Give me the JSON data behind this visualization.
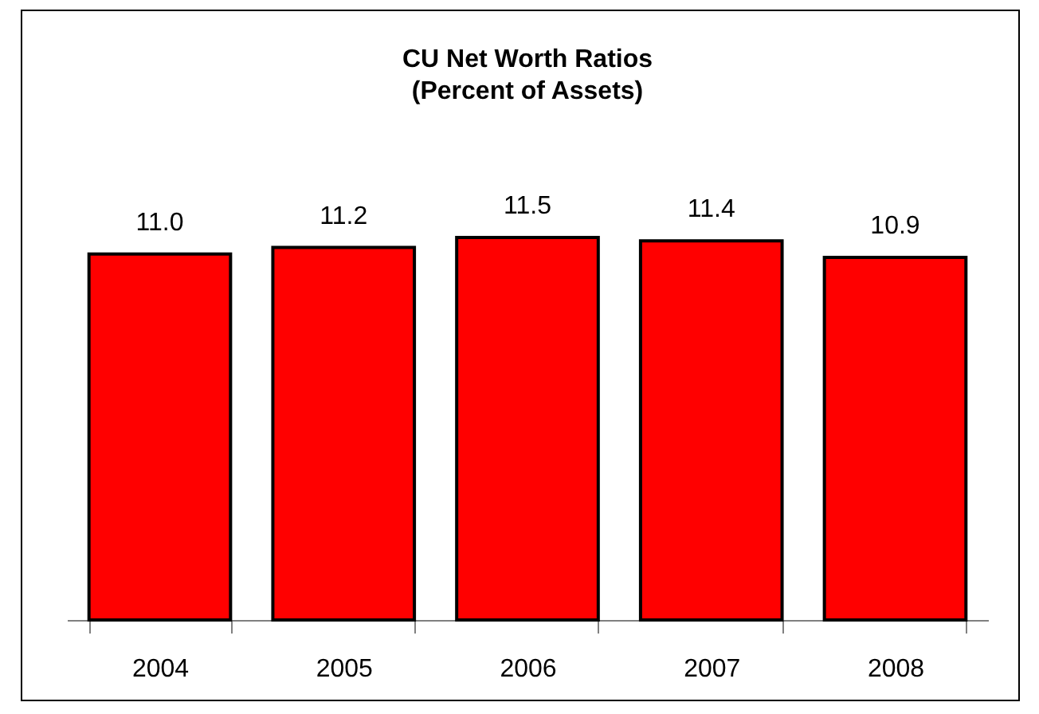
{
  "chart_data": {
    "type": "bar",
    "title": "CU Net Worth Ratios",
    "subtitle": "(Percent of Assets)",
    "categories": [
      "2004",
      "2005",
      "2006",
      "2007",
      "2008"
    ],
    "values": [
      11.0,
      11.2,
      11.5,
      11.4,
      10.9
    ],
    "color": "#ff0000",
    "value_labels": [
      "11.0",
      "11.2",
      "11.5",
      "11.4",
      "10.9"
    ]
  }
}
